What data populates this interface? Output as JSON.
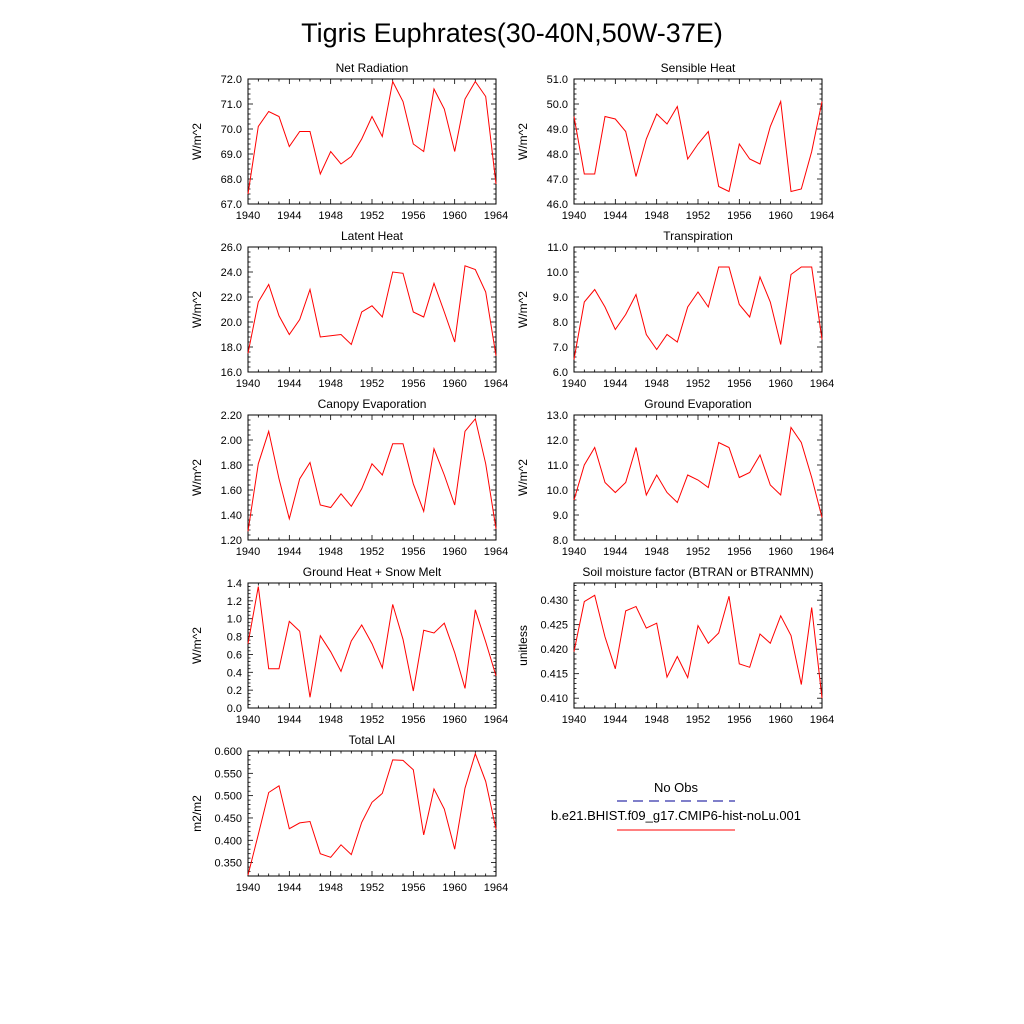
{
  "figure": {
    "title": "Tigris Euphrates(30-40N,50W-37E)",
    "legend": {
      "obs_label": "No Obs",
      "obs_color": "#3333aa",
      "model_label": "b.e21.BHIST.f09_g17.CMIP6-hist-noLu.001",
      "model_color": "#ff0000"
    }
  },
  "chart_data": [
    {
      "type": "line",
      "title": "Net Radiation",
      "ylabel": "W/m^2",
      "xlim": [
        1940,
        1964
      ],
      "ylim": [
        67.0,
        72.0
      ],
      "xticks": [
        1940,
        1944,
        1948,
        1952,
        1956,
        1960,
        1964
      ],
      "yticks": [
        "67.0",
        "68.0",
        "69.0",
        "70.0",
        "71.0",
        "72.0"
      ],
      "x": [
        1940,
        1941,
        1942,
        1943,
        1944,
        1945,
        1946,
        1947,
        1948,
        1949,
        1950,
        1951,
        1952,
        1953,
        1954,
        1955,
        1956,
        1957,
        1958,
        1959,
        1960,
        1961,
        1962,
        1963,
        1964
      ],
      "series": [
        {
          "values": [
            67.4,
            70.1,
            70.7,
            70.5,
            69.3,
            69.9,
            69.9,
            68.2,
            69.1,
            68.6,
            68.9,
            69.6,
            70.5,
            69.7,
            71.9,
            71.1,
            69.4,
            69.1,
            71.6,
            70.8,
            69.1,
            71.2,
            71.9,
            71.3,
            67.8
          ],
          "color": "#ff0000"
        }
      ]
    },
    {
      "type": "line",
      "title": "Sensible Heat",
      "ylabel": "W/m^2",
      "xlim": [
        1940,
        1964
      ],
      "ylim": [
        46.0,
        51.0
      ],
      "xticks": [
        1940,
        1944,
        1948,
        1952,
        1956,
        1960,
        1964
      ],
      "yticks": [
        "46.0",
        "47.0",
        "48.0",
        "49.0",
        "50.0",
        "51.0"
      ],
      "x": [
        1940,
        1941,
        1942,
        1943,
        1944,
        1945,
        1946,
        1947,
        1948,
        1949,
        1950,
        1951,
        1952,
        1953,
        1954,
        1955,
        1956,
        1957,
        1958,
        1959,
        1960,
        1961,
        1962,
        1963,
        1964
      ],
      "series": [
        {
          "values": [
            49.5,
            47.2,
            47.2,
            49.5,
            49.4,
            48.9,
            47.1,
            48.6,
            49.6,
            49.2,
            49.9,
            47.8,
            48.4,
            48.9,
            46.7,
            46.5,
            48.4,
            47.8,
            47.6,
            49.1,
            50.1,
            46.5,
            46.6,
            48.1,
            50.1
          ],
          "color": "#ff0000"
        }
      ]
    },
    {
      "type": "line",
      "title": "Latent Heat",
      "ylabel": "W/m^2",
      "xlim": [
        1940,
        1964
      ],
      "ylim": [
        16.0,
        26.0
      ],
      "xticks": [
        1940,
        1944,
        1948,
        1952,
        1956,
        1960,
        1964
      ],
      "yticks": [
        "16.0",
        "18.0",
        "20.0",
        "22.0",
        "24.0",
        "26.0"
      ],
      "x": [
        1940,
        1941,
        1942,
        1943,
        1944,
        1945,
        1946,
        1947,
        1948,
        1949,
        1950,
        1951,
        1952,
        1953,
        1954,
        1955,
        1956,
        1957,
        1958,
        1959,
        1960,
        1961,
        1962,
        1963,
        1964
      ],
      "series": [
        {
          "values": [
            17.5,
            21.6,
            23.0,
            20.5,
            19.0,
            20.2,
            22.6,
            18.8,
            18.9,
            19.0,
            18.2,
            20.8,
            21.3,
            20.4,
            24.0,
            23.9,
            20.8,
            20.4,
            23.1,
            20.8,
            18.4,
            24.5,
            24.2,
            22.4,
            17.3
          ],
          "color": "#ff0000"
        }
      ]
    },
    {
      "type": "line",
      "title": "Transpiration",
      "ylabel": "W/m^2",
      "xlim": [
        1940,
        1964
      ],
      "ylim": [
        6.0,
        11.0
      ],
      "xticks": [
        1940,
        1944,
        1948,
        1952,
        1956,
        1960,
        1964
      ],
      "yticks": [
        "6.0",
        "7.0",
        "8.0",
        "9.0",
        "10.0",
        "11.0"
      ],
      "x": [
        1940,
        1941,
        1942,
        1943,
        1944,
        1945,
        1946,
        1947,
        1948,
        1949,
        1950,
        1951,
        1952,
        1953,
        1954,
        1955,
        1956,
        1957,
        1958,
        1959,
        1960,
        1961,
        1962,
        1963,
        1964
      ],
      "series": [
        {
          "values": [
            6.5,
            8.8,
            9.3,
            8.6,
            7.7,
            8.3,
            9.1,
            7.5,
            6.9,
            7.5,
            7.2,
            8.6,
            9.2,
            8.6,
            10.2,
            10.2,
            8.7,
            8.2,
            9.8,
            8.8,
            7.1,
            9.9,
            10.2,
            10.2,
            7.3
          ],
          "color": "#ff0000"
        }
      ]
    },
    {
      "type": "line",
      "title": "Canopy Evaporation",
      "ylabel": "W/m^2",
      "xlim": [
        1940,
        1964
      ],
      "ylim": [
        1.2,
        2.2
      ],
      "xticks": [
        1940,
        1944,
        1948,
        1952,
        1956,
        1960,
        1964
      ],
      "yticks": [
        "1.20",
        "1.40",
        "1.60",
        "1.80",
        "2.00",
        "2.20"
      ],
      "x": [
        1940,
        1941,
        1942,
        1943,
        1944,
        1945,
        1946,
        1947,
        1948,
        1949,
        1950,
        1951,
        1952,
        1953,
        1954,
        1955,
        1956,
        1957,
        1958,
        1959,
        1960,
        1961,
        1962,
        1963,
        1964
      ],
      "series": [
        {
          "values": [
            1.27,
            1.81,
            2.07,
            1.69,
            1.37,
            1.69,
            1.82,
            1.48,
            1.46,
            1.57,
            1.47,
            1.61,
            1.81,
            1.72,
            1.97,
            1.97,
            1.65,
            1.43,
            1.93,
            1.72,
            1.48,
            2.07,
            2.17,
            1.81,
            1.29
          ],
          "color": "#ff0000"
        }
      ]
    },
    {
      "type": "line",
      "title": "Ground Evaporation",
      "ylabel": "W/m^2",
      "xlim": [
        1940,
        1964
      ],
      "ylim": [
        8.0,
        13.0
      ],
      "xticks": [
        1940,
        1944,
        1948,
        1952,
        1956,
        1960,
        1964
      ],
      "yticks": [
        "8.0",
        "9.0",
        "10.0",
        "11.0",
        "12.0",
        "13.0"
      ],
      "x": [
        1940,
        1941,
        1942,
        1943,
        1944,
        1945,
        1946,
        1947,
        1948,
        1949,
        1950,
        1951,
        1952,
        1953,
        1954,
        1955,
        1956,
        1957,
        1958,
        1959,
        1960,
        1961,
        1962,
        1963,
        1964
      ],
      "series": [
        {
          "values": [
            9.6,
            11.0,
            11.7,
            10.3,
            9.9,
            10.3,
            11.7,
            9.8,
            10.6,
            9.9,
            9.5,
            10.6,
            10.4,
            10.1,
            11.9,
            11.7,
            10.5,
            10.7,
            11.4,
            10.2,
            9.8,
            12.5,
            11.9,
            10.5,
            8.9
          ],
          "color": "#ff0000"
        }
      ]
    },
    {
      "type": "line",
      "title": "Ground Heat + Snow Melt",
      "ylabel": "W/m^2",
      "xlim": [
        1940,
        1964
      ],
      "ylim": [
        0.0,
        1.4
      ],
      "xticks": [
        1940,
        1944,
        1948,
        1952,
        1956,
        1960,
        1964
      ],
      "yticks": [
        "0.0",
        "0.2",
        "0.4",
        "0.6",
        "0.8",
        "1.0",
        "1.2",
        "1.4"
      ],
      "x": [
        1940,
        1941,
        1942,
        1943,
        1944,
        1945,
        1946,
        1947,
        1948,
        1949,
        1950,
        1951,
        1952,
        1953,
        1954,
        1955,
        1956,
        1957,
        1958,
        1959,
        1960,
        1961,
        1962,
        1963,
        1964
      ],
      "series": [
        {
          "values": [
            0.72,
            1.36,
            0.44,
            0.44,
            0.97,
            0.86,
            0.12,
            0.81,
            0.63,
            0.41,
            0.75,
            0.93,
            0.72,
            0.45,
            1.16,
            0.77,
            0.19,
            0.87,
            0.84,
            0.95,
            0.62,
            0.22,
            1.1,
            0.74,
            0.36
          ],
          "color": "#ff0000"
        }
      ]
    },
    {
      "type": "line",
      "title": "Soil moisture factor (BTRAN or BTRANMN)",
      "ylabel": "unitless",
      "xlim": [
        1940,
        1964
      ],
      "ylim": [
        0.408,
        0.4335
      ],
      "xticks": [
        1940,
        1944,
        1948,
        1952,
        1956,
        1960,
        1964
      ],
      "yticks": [
        "0.410",
        "0.415",
        "0.420",
        "0.425",
        "0.430"
      ],
      "x": [
        1940,
        1941,
        1942,
        1943,
        1944,
        1945,
        1946,
        1947,
        1948,
        1949,
        1950,
        1951,
        1952,
        1953,
        1954,
        1955,
        1956,
        1957,
        1958,
        1959,
        1960,
        1961,
        1962,
        1963,
        1964
      ],
      "series": [
        {
          "values": [
            0.4195,
            0.4297,
            0.431,
            0.4225,
            0.416,
            0.4278,
            0.4287,
            0.4243,
            0.4253,
            0.4143,
            0.4185,
            0.4142,
            0.4248,
            0.4212,
            0.4233,
            0.4308,
            0.417,
            0.4163,
            0.4231,
            0.4212,
            0.4268,
            0.4228,
            0.4128,
            0.4285,
            0.41
          ],
          "color": "#ff0000"
        }
      ]
    },
    {
      "type": "line",
      "title": "Total LAI",
      "ylabel": "m2/m2",
      "xlim": [
        1940,
        1964
      ],
      "ylim": [
        0.32,
        0.6
      ],
      "xticks": [
        1940,
        1944,
        1948,
        1952,
        1956,
        1960,
        1964
      ],
      "yticks": [
        "0.350",
        "0.400",
        "0.450",
        "0.500",
        "0.550",
        "0.600"
      ],
      "x": [
        1940,
        1941,
        1942,
        1943,
        1944,
        1945,
        1946,
        1947,
        1948,
        1949,
        1950,
        1951,
        1952,
        1953,
        1954,
        1955,
        1956,
        1957,
        1958,
        1959,
        1960,
        1961,
        1962,
        1963,
        1964
      ],
      "series": [
        {
          "values": [
            0.322,
            0.413,
            0.507,
            0.522,
            0.426,
            0.439,
            0.442,
            0.37,
            0.362,
            0.39,
            0.368,
            0.44,
            0.485,
            0.505,
            0.58,
            0.579,
            0.558,
            0.412,
            0.515,
            0.47,
            0.38,
            0.517,
            0.594,
            0.532,
            0.425
          ],
          "color": "#ff0000"
        }
      ]
    }
  ]
}
